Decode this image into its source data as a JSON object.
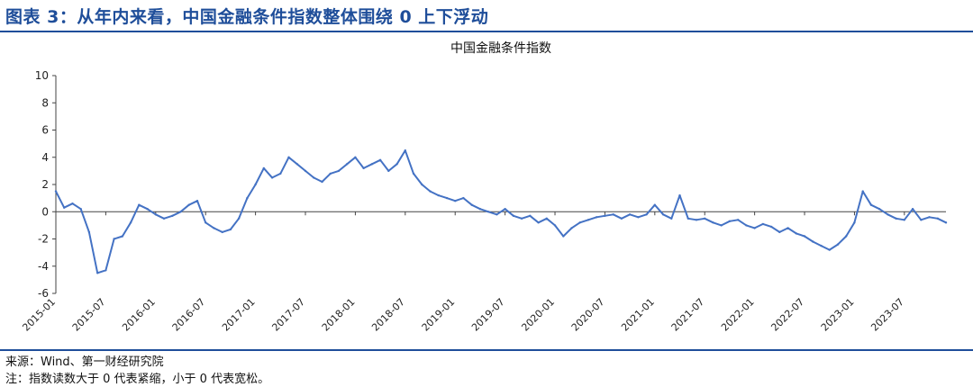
{
  "figure_title": "图表 3：从年内来看，中国金融条件指数整体围绕 0 上下浮动",
  "source_note": "来源：Wind、第一财经研究院",
  "footnote": "注：指数读数大于 0 代表紧缩，小于 0 代表宽松。",
  "colors": {
    "accent": "#1f4e9a",
    "line": "#4472c4",
    "axis": "#444444"
  },
  "chart_data": {
    "type": "line",
    "title": "中国金融条件指数",
    "xlabel": "",
    "ylabel": "",
    "ylim": [
      -6,
      10
    ],
    "yticks": [
      -6,
      -4,
      -2,
      0,
      2,
      4,
      6,
      8,
      10
    ],
    "xlim": [
      "2015-01",
      "2023-12"
    ],
    "xticks": [
      "2015-01",
      "2015-07",
      "2016-01",
      "2016-07",
      "2017-01",
      "2017-07",
      "2018-01",
      "2018-07",
      "2019-01",
      "2019-07",
      "2020-01",
      "2020-07",
      "2021-01",
      "2021-07",
      "2022-01",
      "2022-07",
      "2023-01",
      "2023-07"
    ],
    "grid": false,
    "legend": "none",
    "series": [
      {
        "x": [
          "2015-01",
          "2015-02",
          "2015-03",
          "2015-04",
          "2015-05",
          "2015-06",
          "2015-07",
          "2015-08",
          "2015-09",
          "2015-10",
          "2015-11",
          "2015-12",
          "2016-01",
          "2016-02",
          "2016-03",
          "2016-04",
          "2016-05",
          "2016-06",
          "2016-07",
          "2016-08",
          "2016-09",
          "2016-10",
          "2016-11",
          "2016-12",
          "2017-01",
          "2017-02",
          "2017-03",
          "2017-04",
          "2017-05",
          "2017-06",
          "2017-07",
          "2017-08",
          "2017-09",
          "2017-10",
          "2017-11",
          "2017-12",
          "2018-01",
          "2018-02",
          "2018-03",
          "2018-04",
          "2018-05",
          "2018-06",
          "2018-07",
          "2018-08",
          "2018-09",
          "2018-10",
          "2018-11",
          "2018-12",
          "2019-01",
          "2019-02",
          "2019-03",
          "2019-04",
          "2019-05",
          "2019-06",
          "2019-07",
          "2019-08",
          "2019-09",
          "2019-10",
          "2019-11",
          "2019-12",
          "2020-01",
          "2020-02",
          "2020-03",
          "2020-04",
          "2020-05",
          "2020-06",
          "2020-07",
          "2020-08",
          "2020-09",
          "2020-10",
          "2020-11",
          "2020-12",
          "2021-01",
          "2021-02",
          "2021-03",
          "2021-04",
          "2021-05",
          "2021-06",
          "2021-07",
          "2021-08",
          "2021-09",
          "2021-10",
          "2021-11",
          "2021-12",
          "2022-01",
          "2022-02",
          "2022-03",
          "2022-04",
          "2022-05",
          "2022-06",
          "2022-07",
          "2022-08",
          "2022-09",
          "2022-10",
          "2022-11",
          "2022-12",
          "2023-01",
          "2023-02",
          "2023-03",
          "2023-04",
          "2023-05",
          "2023-06",
          "2023-07",
          "2023-08",
          "2023-09",
          "2023-10",
          "2023-11",
          "2023-12"
        ],
        "values": [
          1.5,
          0.3,
          0.6,
          0.2,
          -1.5,
          -4.5,
          -4.3,
          -2.0,
          -1.8,
          -0.8,
          0.5,
          0.2,
          -0.2,
          -0.5,
          -0.3,
          0.0,
          0.5,
          0.8,
          -0.8,
          -1.2,
          -1.5,
          -1.3,
          -0.5,
          1.0,
          2.0,
          3.2,
          2.5,
          2.8,
          4.0,
          3.5,
          3.0,
          2.5,
          2.2,
          2.8,
          3.0,
          3.5,
          4.0,
          3.2,
          3.5,
          3.8,
          3.0,
          3.5,
          4.5,
          2.8,
          2.0,
          1.5,
          1.2,
          1.0,
          0.8,
          1.0,
          0.5,
          0.2,
          0.0,
          -0.2,
          0.2,
          -0.3,
          -0.5,
          -0.3,
          -0.8,
          -0.5,
          -1.0,
          -1.8,
          -1.2,
          -0.8,
          -0.6,
          -0.4,
          -0.3,
          -0.2,
          -0.5,
          -0.2,
          -0.4,
          -0.2,
          0.5,
          -0.2,
          -0.5,
          1.2,
          -0.5,
          -0.6,
          -0.5,
          -0.8,
          -1.0,
          -0.7,
          -0.6,
          -1.0,
          -1.2,
          -0.9,
          -1.1,
          -1.5,
          -1.2,
          -1.6,
          -1.8,
          -2.2,
          -2.5,
          -2.8,
          -2.4,
          -1.8,
          -0.8,
          1.5,
          0.5,
          0.2,
          -0.2,
          -0.5,
          -0.6,
          0.2,
          -0.6,
          -0.4,
          -0.5,
          -0.8
        ]
      }
    ]
  }
}
